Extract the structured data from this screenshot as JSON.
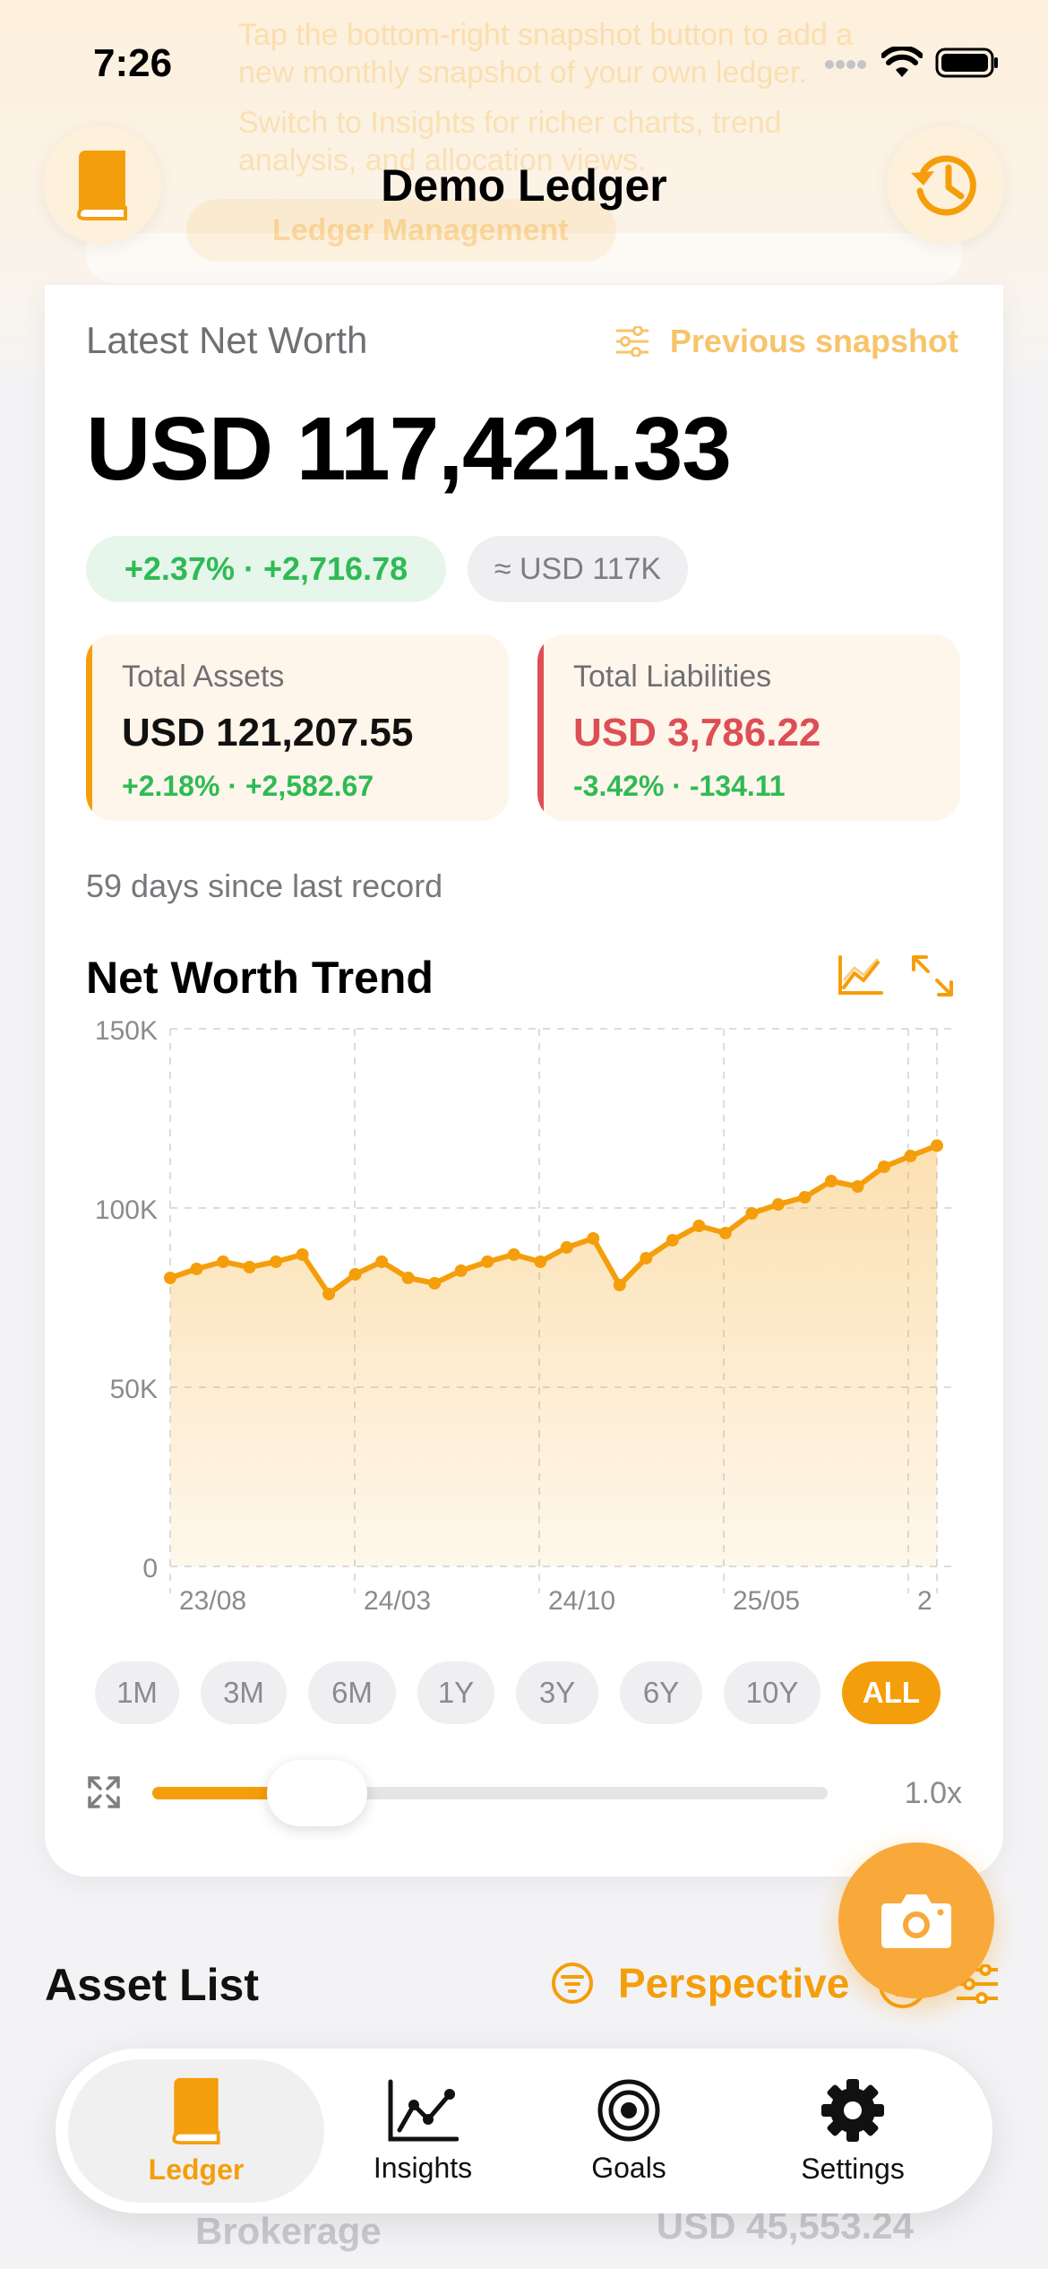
{
  "status_bar": {
    "time": "7:26"
  },
  "header": {
    "title": "Demo Ledger"
  },
  "background": {
    "ghost_line_1": "Tap the bottom-right snapshot button to add a",
    "ghost_line_2": "new monthly snapshot of your own ledger.",
    "ghost_line_3": "Switch to Insights for richer charts, trend",
    "ghost_line_4": "analysis, and allocation views.",
    "ghost_button": "Ledger Management"
  },
  "summary": {
    "latest_label": "Latest Net Worth",
    "previous_snapshot": "Previous snapshot",
    "net_worth": "USD 117,421.33",
    "change_pill": "+2.37% · +2,716.78",
    "approx_pill": "≈ USD 117K",
    "assets": {
      "label": "Total Assets",
      "value": "USD 121,207.55",
      "change": "+2.18% · +2,582.67",
      "color": "#f59e0b"
    },
    "liabilities": {
      "label": "Total Liabilities",
      "value": "USD 3,786.22",
      "change": "-3.42% · -134.11",
      "color": "#dd4f55"
    },
    "days_since": "59 days since last record"
  },
  "trend": {
    "title": "Net Worth Trend",
    "ranges": [
      "1M",
      "3M",
      "6M",
      "1Y",
      "3Y",
      "6Y",
      "10Y",
      "ALL"
    ],
    "active_range": "ALL",
    "zoom": "1.0x"
  },
  "chart_data": {
    "type": "area",
    "y_ticks": [
      "150K",
      "100K",
      "50K",
      "0"
    ],
    "x_ticks": [
      "23/08",
      "24/03",
      "24/10",
      "25/05",
      "2"
    ],
    "ylim": [
      0,
      150000
    ],
    "values": [
      80500,
      83000,
      85000,
      83500,
      85000,
      87000,
      76000,
      81500,
      85000,
      80500,
      79000,
      82500,
      85000,
      87000,
      85000,
      89000,
      91500,
      78500,
      86000,
      91000,
      95000,
      93000,
      98500,
      101000,
      103000,
      107500,
      106000,
      111500,
      114500,
      117400
    ],
    "color": "#f59e0b"
  },
  "asset_list": {
    "title": "Asset List",
    "perspective": "Perspective",
    "row_name": "Brokerage",
    "row_value": "USD 45,553.24"
  },
  "tabs": [
    {
      "label": "Ledger",
      "icon": "book-icon"
    },
    {
      "label": "Insights",
      "icon": "chart-line-icon"
    },
    {
      "label": "Goals",
      "icon": "target-icon"
    },
    {
      "label": "Settings",
      "icon": "gear-icon"
    }
  ]
}
